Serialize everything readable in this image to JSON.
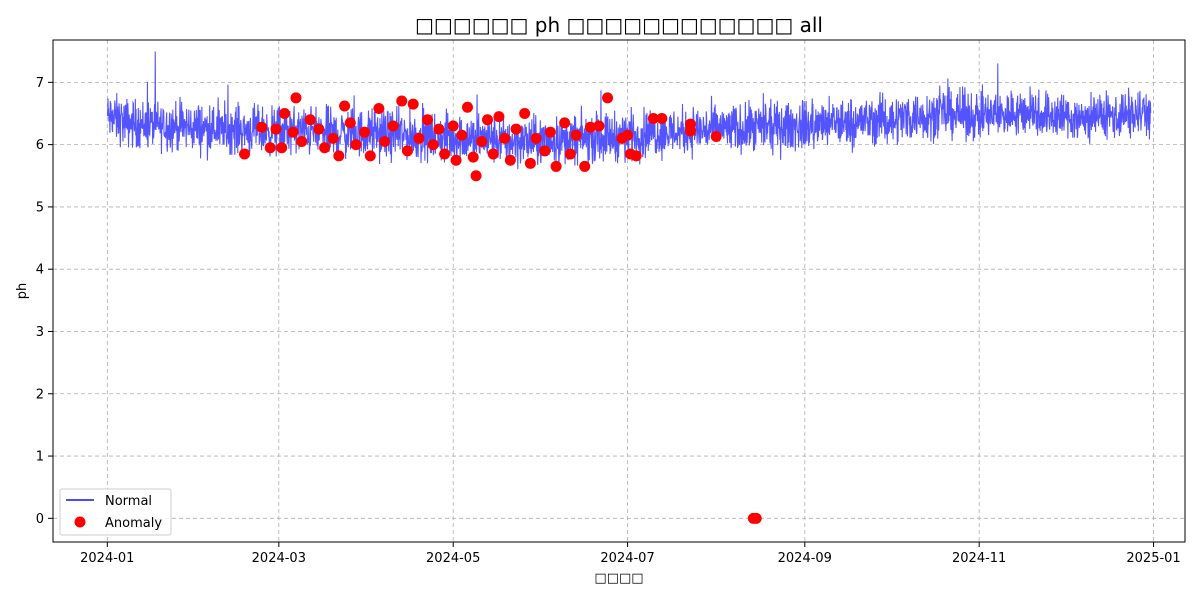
{
  "chart_data": {
    "type": "line",
    "title": "□□□□□□ ph □□□□□□□□□□□□ all",
    "xlabel": "□□□□",
    "ylabel": "ph",
    "xlim": [
      "2023-12-13",
      "2025-01-12"
    ],
    "ylim": [
      -0.38,
      7.68
    ],
    "x_ticks": [
      "2024-01",
      "2024-03",
      "2024-05",
      "2024-07",
      "2024-09",
      "2024-11",
      "2025-01"
    ],
    "y_ticks": [
      0,
      1,
      2,
      3,
      4,
      5,
      6,
      7
    ],
    "grid": true,
    "legend_position": "lower left",
    "series": [
      {
        "name": "Normal",
        "kind": "line",
        "color": "#4b4bff",
        "points": [
          [
            "2024-01-01",
            6.45
          ],
          [
            "2024-01-08",
            6.35
          ],
          [
            "2024-01-15",
            6.32
          ],
          [
            "2024-01-22",
            6.3
          ],
          [
            "2024-02-01",
            6.28
          ],
          [
            "2024-02-08",
            6.25
          ],
          [
            "2024-02-15",
            6.25
          ],
          [
            "2024-02-22",
            6.22
          ],
          [
            "2024-03-01",
            6.22
          ],
          [
            "2024-03-08",
            6.22
          ],
          [
            "2024-03-15",
            6.2
          ],
          [
            "2024-03-22",
            6.18
          ],
          [
            "2024-04-01",
            6.18
          ],
          [
            "2024-04-08",
            6.16
          ],
          [
            "2024-04-15",
            6.15
          ],
          [
            "2024-04-22",
            6.12
          ],
          [
            "2024-05-01",
            6.1
          ],
          [
            "2024-05-08",
            6.1
          ],
          [
            "2024-05-15",
            6.08
          ],
          [
            "2024-05-22",
            6.05
          ],
          [
            "2024-06-01",
            6.05
          ],
          [
            "2024-06-08",
            6.08
          ],
          [
            "2024-06-15",
            6.1
          ],
          [
            "2024-06-22",
            6.12
          ],
          [
            "2024-07-01",
            6.15
          ],
          [
            "2024-07-08",
            6.18
          ],
          [
            "2024-07-15",
            6.2
          ],
          [
            "2024-07-22",
            6.22
          ],
          [
            "2024-08-01",
            6.25
          ],
          [
            "2024-08-08",
            6.25
          ],
          [
            "2024-08-15",
            6.25
          ],
          [
            "2024-08-22",
            6.28
          ],
          [
            "2024-09-01",
            6.3
          ],
          [
            "2024-09-08",
            6.32
          ],
          [
            "2024-09-15",
            6.35
          ],
          [
            "2024-09-22",
            6.38
          ],
          [
            "2024-10-01",
            6.4
          ],
          [
            "2024-10-08",
            6.45
          ],
          [
            "2024-10-15",
            6.48
          ],
          [
            "2024-10-22",
            6.5
          ],
          [
            "2024-11-01",
            6.45
          ],
          [
            "2024-11-08",
            6.48
          ],
          [
            "2024-11-15",
            6.52
          ],
          [
            "2024-11-22",
            6.5
          ],
          [
            "2024-12-01",
            6.45
          ],
          [
            "2024-12-08",
            6.42
          ],
          [
            "2024-12-15",
            6.45
          ],
          [
            "2024-12-22",
            6.48
          ],
          [
            "2024-12-31",
            6.5
          ]
        ]
      },
      {
        "name": "Anomaly",
        "kind": "scatter",
        "color": "#ff0000",
        "points": [
          [
            "2024-02-18",
            5.85
          ],
          [
            "2024-02-24",
            6.28
          ],
          [
            "2024-02-27",
            5.95
          ],
          [
            "2024-02-29",
            6.25
          ],
          [
            "2024-03-02",
            5.95
          ],
          [
            "2024-03-03",
            6.5
          ],
          [
            "2024-03-06",
            6.2
          ],
          [
            "2024-03-07",
            6.75
          ],
          [
            "2024-03-09",
            6.05
          ],
          [
            "2024-03-12",
            6.4
          ],
          [
            "2024-03-15",
            6.25
          ],
          [
            "2024-03-17",
            5.95
          ],
          [
            "2024-03-20",
            6.1
          ],
          [
            "2024-03-22",
            5.82
          ],
          [
            "2024-03-24",
            6.62
          ],
          [
            "2024-03-26",
            6.35
          ],
          [
            "2024-03-28",
            6.0
          ],
          [
            "2024-03-31",
            6.2
          ],
          [
            "2024-04-02",
            5.82
          ],
          [
            "2024-04-05",
            6.58
          ],
          [
            "2024-04-07",
            6.05
          ],
          [
            "2024-04-10",
            6.3
          ],
          [
            "2024-04-13",
            6.7
          ],
          [
            "2024-04-15",
            5.9
          ],
          [
            "2024-04-17",
            6.65
          ],
          [
            "2024-04-19",
            6.1
          ],
          [
            "2024-04-22",
            6.4
          ],
          [
            "2024-04-24",
            6.0
          ],
          [
            "2024-04-26",
            6.25
          ],
          [
            "2024-04-28",
            5.85
          ],
          [
            "2024-05-01",
            6.3
          ],
          [
            "2024-05-02",
            5.75
          ],
          [
            "2024-05-04",
            6.15
          ],
          [
            "2024-05-06",
            6.6
          ],
          [
            "2024-05-08",
            5.8
          ],
          [
            "2024-05-09",
            5.5
          ],
          [
            "2024-05-11",
            6.05
          ],
          [
            "2024-05-13",
            6.4
          ],
          [
            "2024-05-15",
            5.85
          ],
          [
            "2024-05-17",
            6.45
          ],
          [
            "2024-05-19",
            6.1
          ],
          [
            "2024-05-21",
            5.75
          ],
          [
            "2024-05-23",
            6.25
          ],
          [
            "2024-05-26",
            6.5
          ],
          [
            "2024-05-28",
            5.7
          ],
          [
            "2024-05-30",
            6.1
          ],
          [
            "2024-06-02",
            5.9
          ],
          [
            "2024-06-04",
            6.2
          ],
          [
            "2024-06-06",
            5.65
          ],
          [
            "2024-06-09",
            6.35
          ],
          [
            "2024-06-11",
            5.85
          ],
          [
            "2024-06-13",
            6.15
          ],
          [
            "2024-06-16",
            5.65
          ],
          [
            "2024-06-18",
            6.28
          ],
          [
            "2024-06-21",
            6.3
          ],
          [
            "2024-06-24",
            6.75
          ],
          [
            "2024-06-29",
            6.1
          ],
          [
            "2024-07-01",
            6.15
          ],
          [
            "2024-07-02",
            5.85
          ],
          [
            "2024-07-04",
            5.82
          ],
          [
            "2024-07-10",
            6.42
          ],
          [
            "2024-07-13",
            6.42
          ],
          [
            "2024-07-23",
            6.33
          ],
          [
            "2024-07-23",
            6.22
          ],
          [
            "2024-08-01",
            6.13
          ],
          [
            "2024-08-14",
            0.0
          ],
          [
            "2024-08-15",
            0.0
          ]
        ]
      }
    ]
  }
}
